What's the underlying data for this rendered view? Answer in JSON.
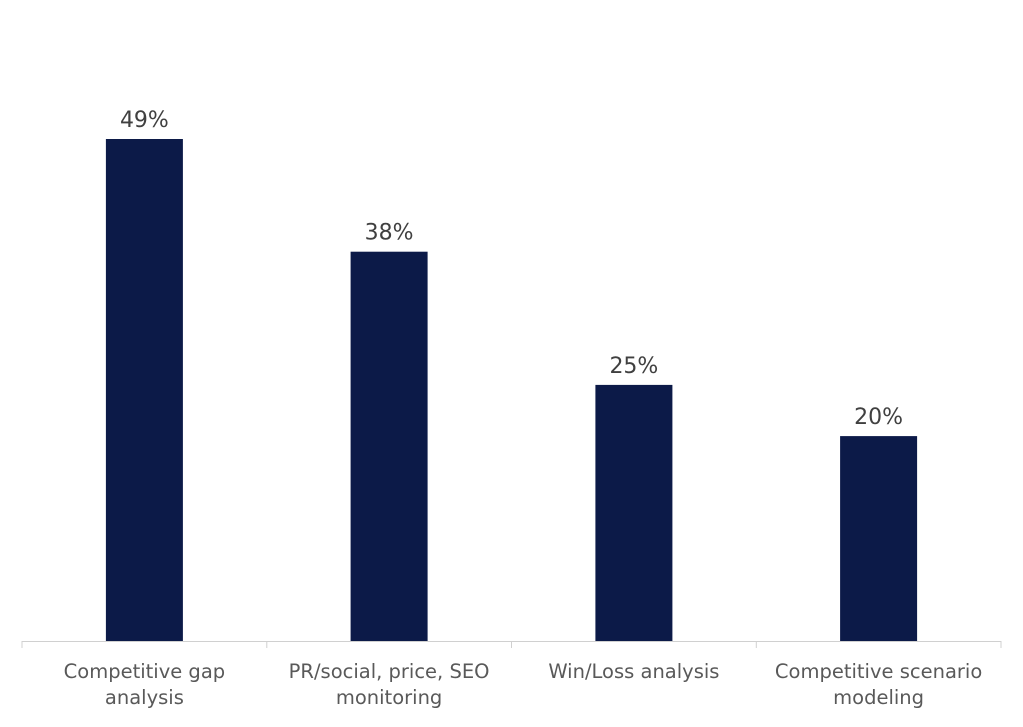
{
  "chart_data": {
    "type": "bar",
    "categories": [
      [
        "Competitive gap",
        "analysis"
      ],
      [
        "PR/social, price, SEO",
        "monitoring"
      ],
      [
        "Win/Loss analysis"
      ],
      [
        "Competitive scenario",
        "modeling"
      ]
    ],
    "values": [
      49,
      38,
      25,
      20
    ],
    "value_labels": [
      "49%",
      "38%",
      "25%",
      "20%"
    ],
    "title": "",
    "xlabel": "",
    "ylabel": "",
    "ylim": [
      0,
      55
    ],
    "grid": false,
    "legend": "none",
    "colors": {
      "bar": "#0c1a48",
      "axis": "#d0d0d0",
      "value_text": "#404040",
      "category_text": "#595959"
    }
  }
}
